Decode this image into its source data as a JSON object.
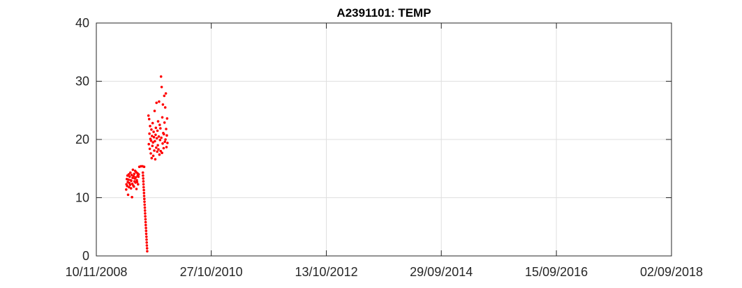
{
  "chart_data": {
    "type": "scatter",
    "title": "A2391101: TEMP",
    "xlabel": "",
    "ylabel": "",
    "x_axis": {
      "kind": "date",
      "range": [
        "10/11/2008",
        "02/09/2018"
      ],
      "tick_labels": [
        "10/11/2008",
        "27/10/2010",
        "13/10/2012",
        "29/09/2014",
        "15/09/2016",
        "02/09/2018"
      ]
    },
    "y_axis": {
      "range": [
        0,
        40
      ],
      "tick_labels": [
        "0",
        "10",
        "20",
        "30",
        "40"
      ]
    },
    "grid": true,
    "marker_color": "#ff0000",
    "series": [
      {
        "points": [
          {
            "x": "2009-05-15",
            "y": 11.4
          },
          {
            "x": "2009-05-17",
            "y": 12.3
          },
          {
            "x": "2009-05-19",
            "y": 13.2
          },
          {
            "x": "2009-05-21",
            "y": 12.0
          },
          {
            "x": "2009-05-23",
            "y": 13.8
          },
          {
            "x": "2009-05-25",
            "y": 12.7
          },
          {
            "x": "2009-05-27",
            "y": 10.5
          },
          {
            "x": "2009-05-29",
            "y": 13.1
          },
          {
            "x": "2009-05-31",
            "y": 14.0
          },
          {
            "x": "2009-06-02",
            "y": 11.8
          },
          {
            "x": "2009-06-04",
            "y": 12.5
          },
          {
            "x": "2009-06-06",
            "y": 13.6
          },
          {
            "x": "2009-06-08",
            "y": 12.2
          },
          {
            "x": "2009-06-10",
            "y": 14.3
          },
          {
            "x": "2009-06-12",
            "y": 13.0
          },
          {
            "x": "2009-06-14",
            "y": 11.6
          },
          {
            "x": "2009-06-16",
            "y": 12.9
          },
          {
            "x": "2009-06-18",
            "y": 13.9
          },
          {
            "x": "2009-06-20",
            "y": 10.1
          },
          {
            "x": "2009-06-22",
            "y": 12.4
          },
          {
            "x": "2009-06-24",
            "y": 13.4
          },
          {
            "x": "2009-06-26",
            "y": 14.8
          },
          {
            "x": "2009-06-28",
            "y": 12.1
          },
          {
            "x": "2009-06-30",
            "y": 13.7
          },
          {
            "x": "2009-07-02",
            "y": 11.9
          },
          {
            "x": "2009-07-04",
            "y": 14.1
          },
          {
            "x": "2009-07-06",
            "y": 12.8
          },
          {
            "x": "2009-07-08",
            "y": 13.3
          },
          {
            "x": "2009-07-10",
            "y": 14.6
          },
          {
            "x": "2009-07-12",
            "y": 12.6
          },
          {
            "x": "2009-07-14",
            "y": 13.5
          },
          {
            "x": "2009-07-16",
            "y": 14.4
          },
          {
            "x": "2009-07-18",
            "y": 11.5
          },
          {
            "x": "2009-07-20",
            "y": 13.0
          },
          {
            "x": "2009-07-22",
            "y": 12.7
          },
          {
            "x": "2009-07-24",
            "y": 14.2
          },
          {
            "x": "2009-07-26",
            "y": 13.8
          },
          {
            "x": "2009-07-28",
            "y": 12.3
          },
          {
            "x": "2009-07-30",
            "y": 13.6
          },
          {
            "x": "2009-08-01",
            "y": 14.0
          },
          {
            "x": "2009-08-05",
            "y": 15.3
          },
          {
            "x": "2009-08-15",
            "y": 15.4
          },
          {
            "x": "2009-08-25",
            "y": 15.4
          },
          {
            "x": "2009-09-04",
            "y": 15.3
          },
          {
            "x": "2009-08-27",
            "y": 14.3
          },
          {
            "x": "2009-08-28",
            "y": 13.8
          },
          {
            "x": "2009-08-29",
            "y": 13.3
          },
          {
            "x": "2009-08-30",
            "y": 12.8
          },
          {
            "x": "2009-08-31",
            "y": 12.3
          },
          {
            "x": "2009-09-01",
            "y": 11.8
          },
          {
            "x": "2009-09-02",
            "y": 11.3
          },
          {
            "x": "2009-09-03",
            "y": 10.8
          },
          {
            "x": "2009-09-04",
            "y": 10.3
          },
          {
            "x": "2009-09-05",
            "y": 9.8
          },
          {
            "x": "2009-09-06",
            "y": 9.3
          },
          {
            "x": "2009-09-07",
            "y": 8.8
          },
          {
            "x": "2009-09-08",
            "y": 8.3
          },
          {
            "x": "2009-09-09",
            "y": 7.8
          },
          {
            "x": "2009-09-10",
            "y": 7.3
          },
          {
            "x": "2009-09-11",
            "y": 6.8
          },
          {
            "x": "2009-09-12",
            "y": 6.3
          },
          {
            "x": "2009-09-13",
            "y": 5.8
          },
          {
            "x": "2009-09-14",
            "y": 5.3
          },
          {
            "x": "2009-09-15",
            "y": 4.8
          },
          {
            "x": "2009-09-16",
            "y": 4.3
          },
          {
            "x": "2009-09-17",
            "y": 3.8
          },
          {
            "x": "2009-09-18",
            "y": 3.3
          },
          {
            "x": "2009-09-19",
            "y": 2.8
          },
          {
            "x": "2009-09-20",
            "y": 2.3
          },
          {
            "x": "2009-09-21",
            "y": 1.8
          },
          {
            "x": "2009-09-22",
            "y": 1.3
          },
          {
            "x": "2009-09-23",
            "y": 0.8
          },
          {
            "x": "2009-10-01",
            "y": 24.1
          },
          {
            "x": "2009-10-03",
            "y": 19.2
          },
          {
            "x": "2009-10-05",
            "y": 23.5
          },
          {
            "x": "2009-10-07",
            "y": 21.0
          },
          {
            "x": "2009-10-09",
            "y": 18.4
          },
          {
            "x": "2009-10-11",
            "y": 22.3
          },
          {
            "x": "2009-10-13",
            "y": 20.1
          },
          {
            "x": "2009-10-15",
            "y": 17.6
          },
          {
            "x": "2009-10-17",
            "y": 19.8
          },
          {
            "x": "2009-10-19",
            "y": 21.7
          },
          {
            "x": "2009-10-21",
            "y": 16.8
          },
          {
            "x": "2009-10-23",
            "y": 20.6
          },
          {
            "x": "2009-10-25",
            "y": 18.9
          },
          {
            "x": "2009-10-27",
            "y": 22.8
          },
          {
            "x": "2009-10-29",
            "y": 19.5
          },
          {
            "x": "2009-10-31",
            "y": 17.2
          },
          {
            "x": "2009-11-02",
            "y": 21.3
          },
          {
            "x": "2009-11-04",
            "y": 20.4
          },
          {
            "x": "2009-11-06",
            "y": 18.1
          },
          {
            "x": "2009-11-08",
            "y": 24.9
          },
          {
            "x": "2009-11-10",
            "y": 19.7
          },
          {
            "x": "2009-11-12",
            "y": 16.6
          },
          {
            "x": "2009-11-14",
            "y": 20.8
          },
          {
            "x": "2009-11-16",
            "y": 22.0
          },
          {
            "x": "2009-11-18",
            "y": 18.6
          },
          {
            "x": "2009-11-20",
            "y": 26.3
          },
          {
            "x": "2009-11-22",
            "y": 20.2
          },
          {
            "x": "2009-11-24",
            "y": 17.9
          },
          {
            "x": "2009-11-26",
            "y": 21.5
          },
          {
            "x": "2009-11-28",
            "y": 19.0
          },
          {
            "x": "2009-11-30",
            "y": 23.1
          },
          {
            "x": "2009-12-02",
            "y": 18.3
          },
          {
            "x": "2009-12-04",
            "y": 20.5
          },
          {
            "x": "2009-12-06",
            "y": 26.5
          },
          {
            "x": "2009-12-08",
            "y": 17.4
          },
          {
            "x": "2009-12-10",
            "y": 22.5
          },
          {
            "x": "2009-12-12",
            "y": 19.9
          },
          {
            "x": "2009-12-14",
            "y": 21.9
          },
          {
            "x": "2009-12-16",
            "y": 18.0
          },
          {
            "x": "2009-12-18",
            "y": 30.8
          },
          {
            "x": "2009-12-20",
            "y": 20.3
          },
          {
            "x": "2009-12-22",
            "y": 29.0
          },
          {
            "x": "2009-12-24",
            "y": 17.7
          },
          {
            "x": "2009-12-26",
            "y": 23.8
          },
          {
            "x": "2009-12-28",
            "y": 19.3
          },
          {
            "x": "2009-12-30",
            "y": 26.0
          },
          {
            "x": "2010-01-01",
            "y": 21.1
          },
          {
            "x": "2010-01-03",
            "y": 18.5
          },
          {
            "x": "2010-01-05",
            "y": 20.9
          },
          {
            "x": "2010-01-07",
            "y": 27.5
          },
          {
            "x": "2010-01-09",
            "y": 22.9
          },
          {
            "x": "2010-01-11",
            "y": 19.6
          },
          {
            "x": "2010-01-13",
            "y": 25.5
          },
          {
            "x": "2010-01-15",
            "y": 20.0
          },
          {
            "x": "2010-01-17",
            "y": 27.9
          },
          {
            "x": "2010-01-19",
            "y": 21.8
          },
          {
            "x": "2010-01-21",
            "y": 18.7
          },
          {
            "x": "2010-01-23",
            "y": 20.7
          },
          {
            "x": "2010-01-25",
            "y": 23.6
          },
          {
            "x": "2010-01-27",
            "y": 19.4
          }
        ]
      }
    ]
  }
}
